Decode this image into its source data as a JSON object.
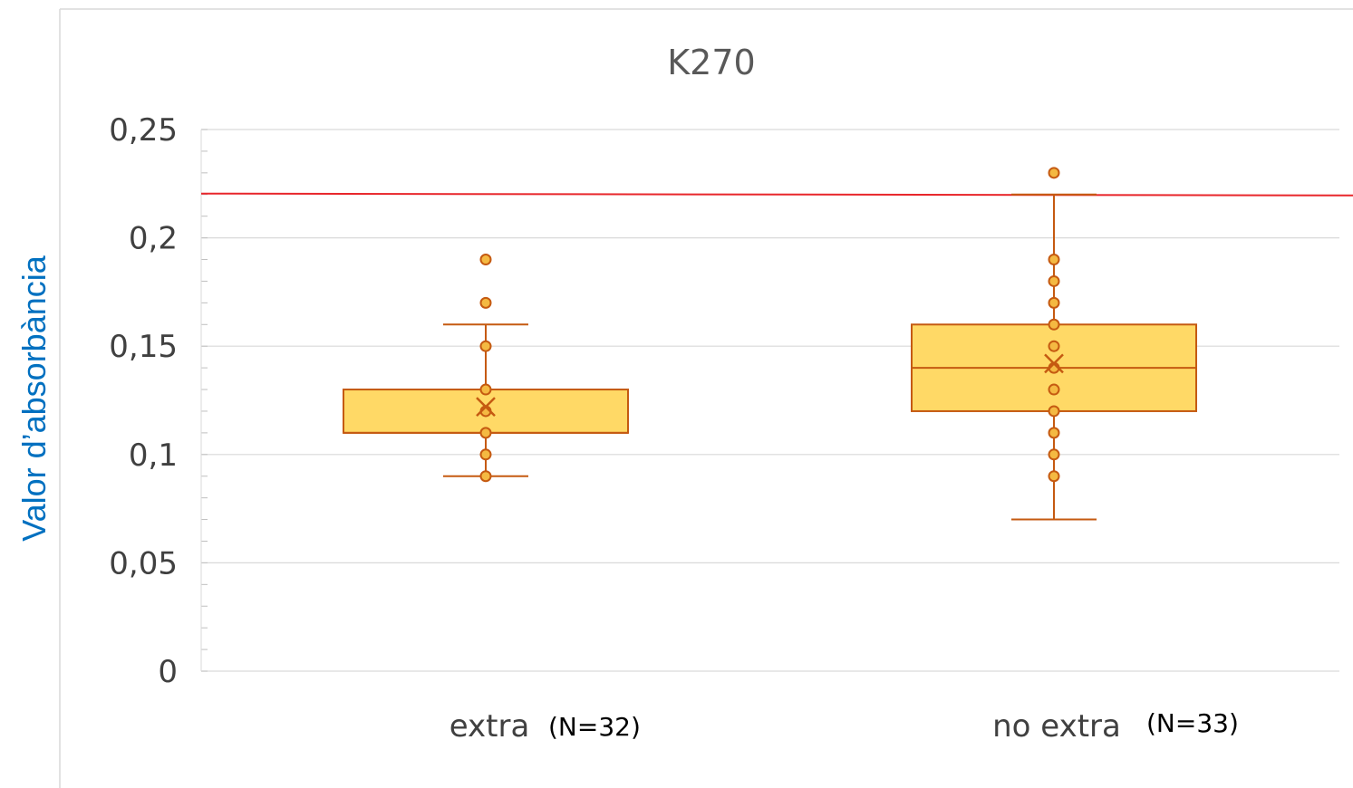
{
  "chart_data": {
    "type": "box",
    "title": "K270",
    "ylabel": "Valor d’absorbància",
    "xlabel": "",
    "ylim": [
      0,
      0.25
    ],
    "yticks": [
      0,
      0.05,
      0.1,
      0.15,
      0.2,
      0.25
    ],
    "ytick_labels": [
      "0",
      "0,05",
      "0,1",
      "0,15",
      "0,2",
      "0,25"
    ],
    "grid": true,
    "reference_line": {
      "y": 0.22,
      "color": "#e8262b"
    },
    "categories": [
      {
        "name": "extra",
        "n_label": "(N=32)",
        "whisker_low": 0.09,
        "q1": 0.11,
        "median": 0.11,
        "q3": 0.13,
        "whisker_high": 0.16,
        "mean": 0.122,
        "points": [
          0.09,
          0.1,
          0.11,
          0.12,
          0.13,
          0.15,
          0.17,
          0.19
        ]
      },
      {
        "name": "no extra",
        "n_label": "(N=33)",
        "whisker_low": 0.07,
        "q1": 0.12,
        "median": 0.14,
        "q3": 0.16,
        "whisker_high": 0.22,
        "mean": 0.142,
        "points": [
          0.09,
          0.1,
          0.11,
          0.12,
          0.13,
          0.14,
          0.15,
          0.16,
          0.17,
          0.18,
          0.19,
          0.23
        ]
      }
    ],
    "colors": {
      "box_fill": "#ffd966",
      "box_stroke": "#c55a11",
      "point_fill": "#f4b942",
      "point_stroke": "#c55a11",
      "grid": "#d9d9d9",
      "ylabel": "#0070c0",
      "title": "#595959"
    }
  }
}
